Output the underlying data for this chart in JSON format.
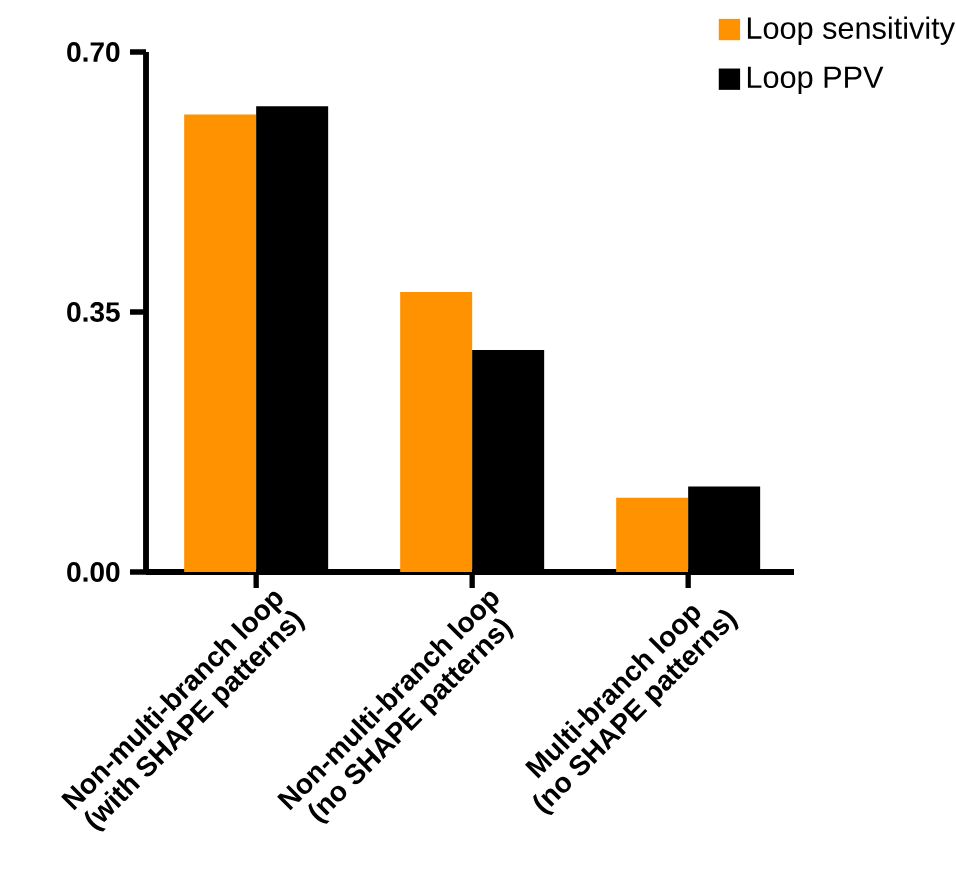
{
  "chart_data": {
    "type": "bar",
    "categories": [
      "Non-multi-branch loop\n(with SHAPE patterns)",
      "Non-multi-branch loop\n(no SHAPE patterns)",
      "Multi-branch loop\n(no SHAPE patterns)"
    ],
    "series": [
      {
        "name": "Loop sensitivity",
        "color": "#ff9200",
        "values": [
          0.616,
          0.377,
          0.1
        ]
      },
      {
        "name": "Loop PPV",
        "color": "#000000",
        "values": [
          0.627,
          0.299,
          0.115
        ]
      }
    ],
    "ylim": [
      0,
      0.7
    ],
    "yticks": [
      {
        "value": 0,
        "label": "0.00"
      },
      {
        "value": 0.35,
        "label": "0.35"
      },
      {
        "value": 0.7,
        "label": "0.70"
      }
    ],
    "grid": false,
    "legend": "top right"
  }
}
